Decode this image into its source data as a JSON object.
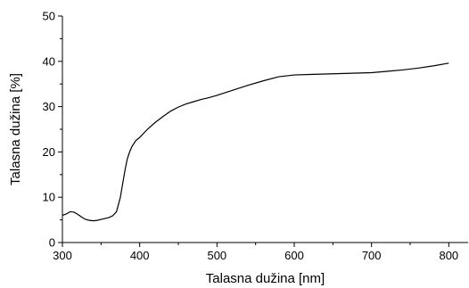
{
  "chart_data": {
    "type": "line",
    "xlabel": "Talasna dužina [nm]",
    "ylabel": "Talasna dužina [%]",
    "xlim": [
      300,
      825
    ],
    "ylim": [
      0,
      50
    ],
    "x_ticks": [
      300,
      400,
      500,
      600,
      700,
      800
    ],
    "y_ticks": [
      0,
      10,
      20,
      30,
      40,
      50
    ],
    "grid": false,
    "line_color": "#000000",
    "series": [
      {
        "x": [
          300,
          305,
          310,
          315,
          320,
          325,
          330,
          335,
          340,
          345,
          350,
          355,
          360,
          365,
          370,
          375,
          378,
          381,
          384,
          387,
          390,
          395,
          400,
          410,
          420,
          430,
          440,
          450,
          460,
          470,
          480,
          490,
          500,
          520,
          540,
          560,
          580,
          600,
          620,
          640,
          660,
          680,
          700,
          720,
          740,
          760,
          780,
          800
        ],
        "y": [
          6.0,
          6.3,
          6.8,
          6.7,
          6.2,
          5.6,
          5.1,
          4.9,
          4.8,
          4.9,
          5.1,
          5.3,
          5.5,
          5.9,
          6.8,
          10.0,
          13.0,
          16.0,
          18.5,
          20.0,
          21.2,
          22.5,
          23.2,
          25.0,
          26.5,
          27.8,
          29.0,
          29.9,
          30.6,
          31.1,
          31.6,
          32.0,
          32.5,
          33.6,
          34.7,
          35.7,
          36.6,
          37.0,
          37.1,
          37.2,
          37.3,
          37.4,
          37.5,
          37.8,
          38.1,
          38.5,
          39.0,
          39.6
        ]
      }
    ]
  }
}
